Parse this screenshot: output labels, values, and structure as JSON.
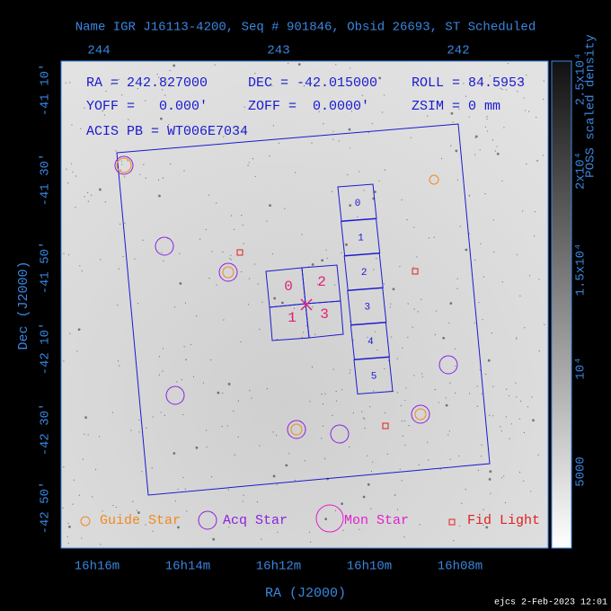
{
  "header": {
    "title": "Name IGR J16113-4200, Seq # 901846, Obsid 26693, ST Scheduled"
  },
  "axes": {
    "top_ticks": [
      "244",
      "243",
      "242"
    ],
    "bottom_ticks": [
      "16h16m",
      "16h14m",
      "16h12m",
      "16h10m",
      "16h08m"
    ],
    "left_ticks": [
      "-41 10'",
      "-41 30'",
      "-41 50'",
      "-42 10'",
      "-42 30'",
      "-42 50'"
    ],
    "x_label": "RA (J2000)",
    "y_label": "Dec (J2000)"
  },
  "info": [
    "RA = 242.827000",
    "DEC = -42.015000",
    "ROLL = 84.5953",
    "YOFF =   0.000'",
    "ZOFF =  0.0000'",
    "ZSIM = 0 mm",
    "ACIS PB = WT006E7034"
  ],
  "acis_i": [
    "0",
    "2",
    "1",
    "3"
  ],
  "acis_s": [
    "0",
    "1",
    "2",
    "3",
    "4",
    "5"
  ],
  "legend": [
    "Guide Star",
    "Acq Star",
    "Mon Star",
    "Fid Light"
  ],
  "colorbar": {
    "label": "POSS scaled density",
    "ticks": [
      "2.5x10⁴",
      "2x10⁴",
      "1.5x10⁴",
      "10⁴",
      "5000"
    ]
  },
  "footer": "ejcs  2-Feb-2023 12:01"
}
